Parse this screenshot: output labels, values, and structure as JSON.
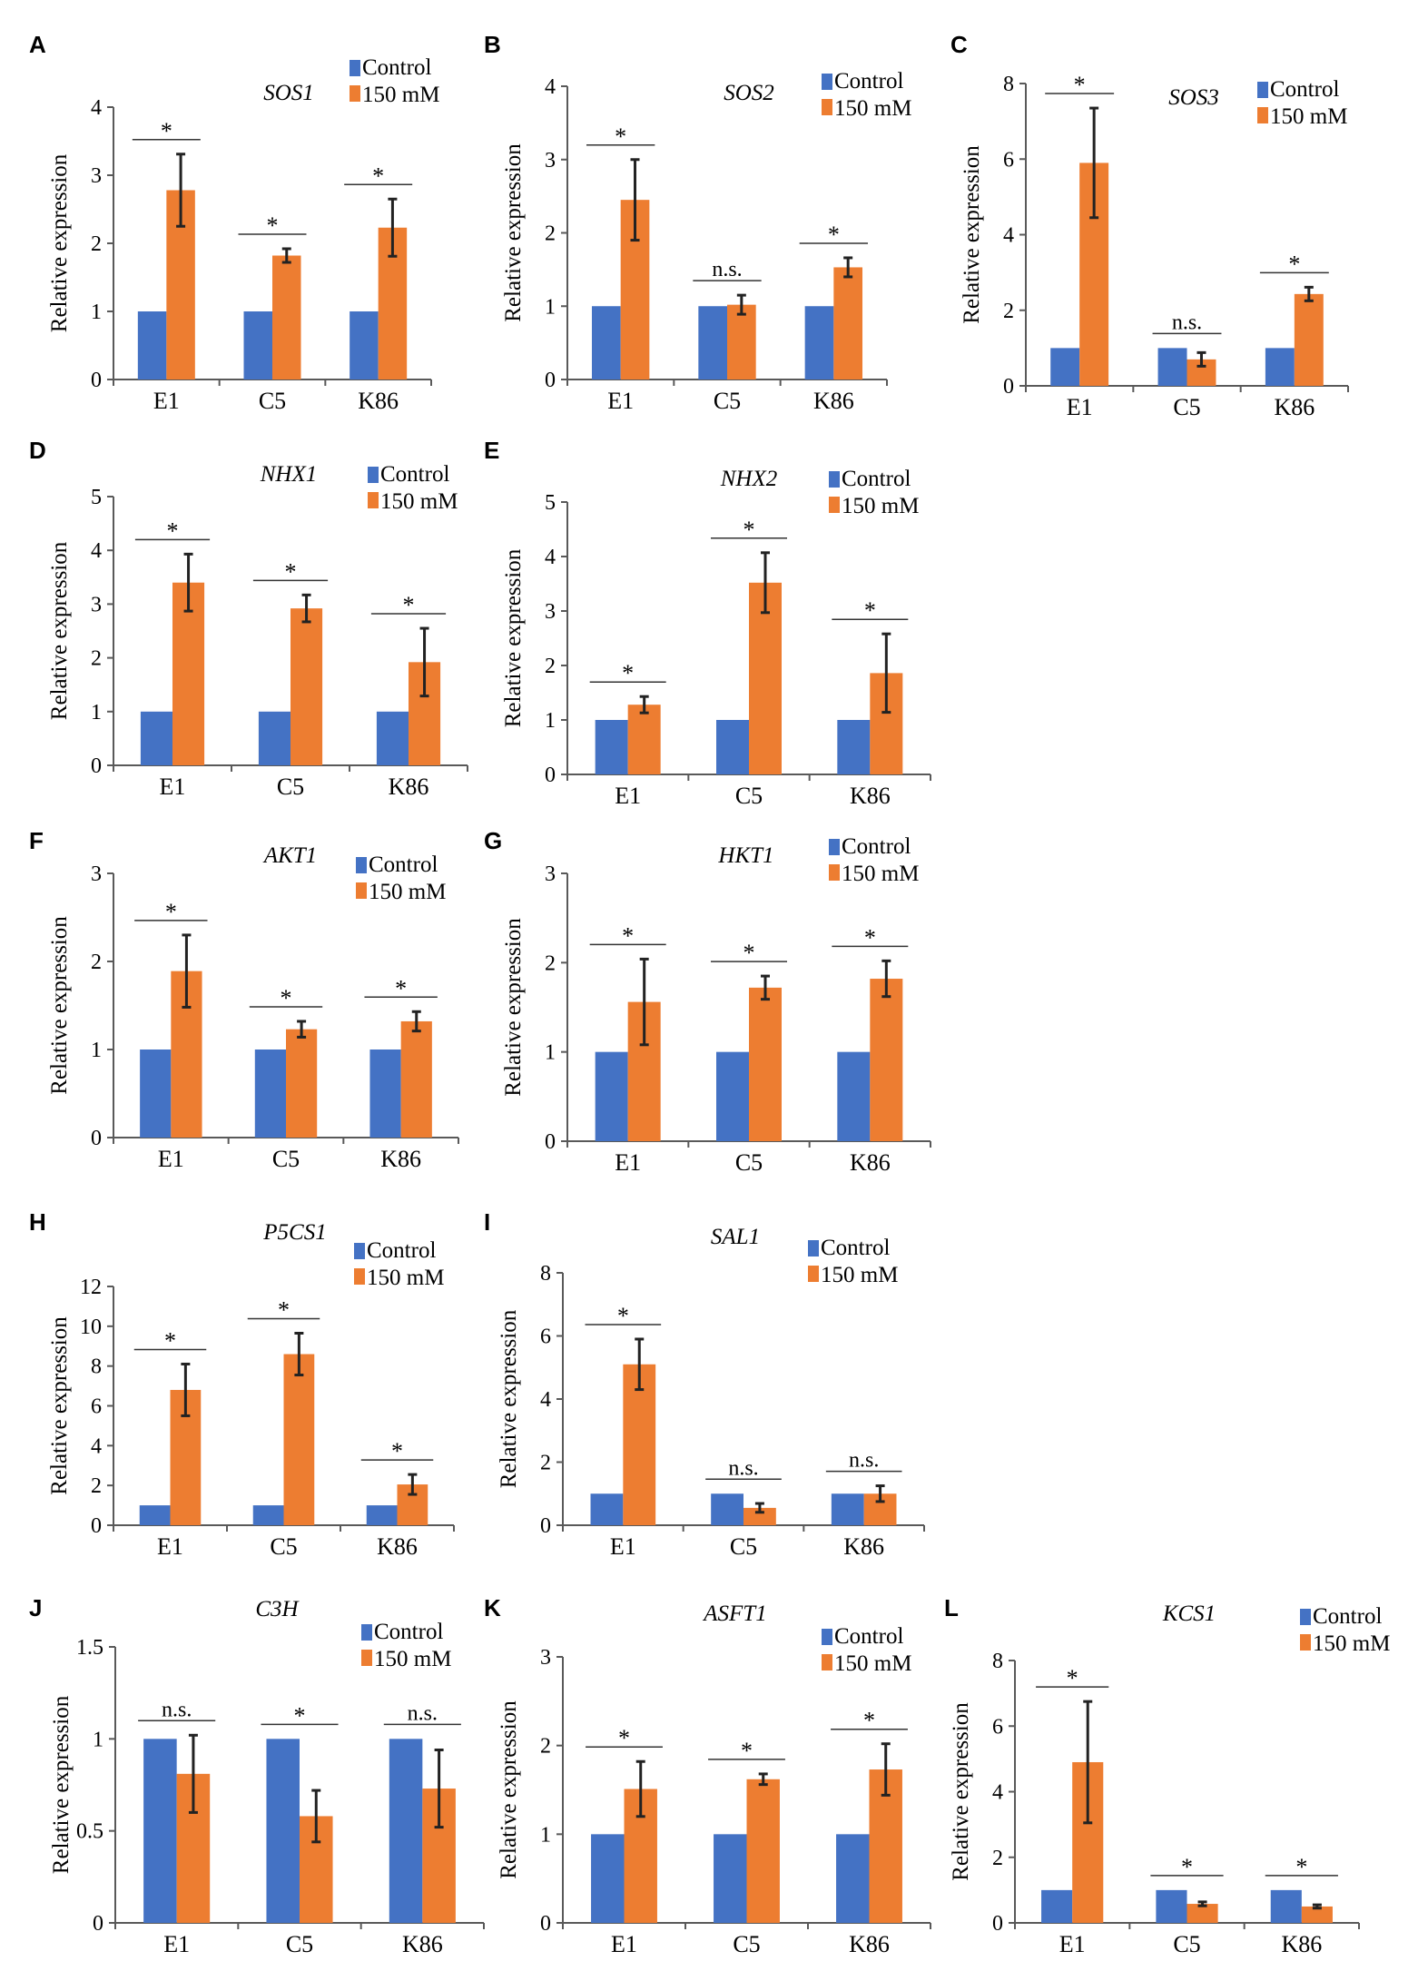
{
  "figure": {
    "legend_control": "Control",
    "legend_treatment": "150 mM",
    "y_axis_label": "Relative expression",
    "colors": {
      "control": "#4472C4",
      "treatment": "#ED7D31",
      "axis": "#595959",
      "text": "#000000"
    }
  },
  "chart_data": [
    {
      "panel": "A",
      "gene": "SOS1",
      "type": "bar",
      "categories": [
        "E1",
        "C5",
        "K86"
      ],
      "ylabel": "Relative expression",
      "ylim": [
        0,
        4
      ],
      "yticks": [
        0,
        1,
        2,
        3,
        4
      ],
      "ytick_labels": [
        "0",
        "1",
        "2",
        "3",
        "4"
      ],
      "series": [
        {
          "name": "Control",
          "values": [
            1,
            1,
            1
          ]
        },
        {
          "name": "150 mM",
          "values": [
            2.78,
            1.82,
            2.23
          ],
          "errors": [
            0.53,
            0.1,
            0.42
          ]
        }
      ],
      "significance": [
        "*",
        "*",
        "*"
      ]
    },
    {
      "panel": "B",
      "gene": "SOS2",
      "type": "bar",
      "categories": [
        "E1",
        "C5",
        "K86"
      ],
      "ylabel": "Relative expression",
      "ylim": [
        0,
        4
      ],
      "yticks": [
        0,
        1,
        2,
        3,
        4
      ],
      "ytick_labels": [
        "0",
        "1",
        "2",
        "3",
        "4"
      ],
      "series": [
        {
          "name": "Control",
          "values": [
            1,
            1,
            1
          ]
        },
        {
          "name": "150 mM",
          "values": [
            2.45,
            1.02,
            1.53
          ],
          "errors": [
            0.55,
            0.13,
            0.13
          ]
        }
      ],
      "significance": [
        "*",
        "n.s.",
        "*"
      ]
    },
    {
      "panel": "C",
      "gene": "SOS3",
      "type": "bar",
      "categories": [
        "E1",
        "C5",
        "K86"
      ],
      "ylabel": "Relative expression",
      "ylim": [
        0,
        8
      ],
      "yticks": [
        0,
        2,
        4,
        6,
        8
      ],
      "ytick_labels": [
        "0",
        "2",
        "4",
        "6",
        "8"
      ],
      "series": [
        {
          "name": "Control",
          "values": [
            1,
            1,
            1
          ]
        },
        {
          "name": "150 mM",
          "values": [
            5.9,
            0.7,
            2.43
          ],
          "errors": [
            1.45,
            0.18,
            0.18
          ]
        }
      ],
      "significance": [
        "*",
        "n.s.",
        "*"
      ]
    },
    {
      "panel": "D",
      "gene": "NHX1",
      "type": "bar",
      "categories": [
        "E1",
        "C5",
        "K86"
      ],
      "ylabel": "Relative expression",
      "ylim": [
        0,
        5
      ],
      "yticks": [
        0,
        1,
        2,
        3,
        4,
        5
      ],
      "ytick_labels": [
        "0",
        "1",
        "2",
        "3",
        "4",
        "5"
      ],
      "series": [
        {
          "name": "Control",
          "values": [
            1,
            1,
            1
          ]
        },
        {
          "name": "150 mM",
          "values": [
            3.4,
            2.92,
            1.92
          ],
          "errors": [
            0.53,
            0.25,
            0.63
          ]
        }
      ],
      "significance": [
        "*",
        "*",
        "*"
      ]
    },
    {
      "panel": "E",
      "gene": "NHX2",
      "type": "bar",
      "categories": [
        "E1",
        "C5",
        "K86"
      ],
      "ylabel": "Relative expression",
      "ylim": [
        0,
        5
      ],
      "yticks": [
        0,
        1,
        2,
        3,
        4,
        5
      ],
      "ytick_labels": [
        "0",
        "1",
        "2",
        "3",
        "4",
        "5"
      ],
      "series": [
        {
          "name": "Control",
          "values": [
            1,
            1,
            1
          ]
        },
        {
          "name": "150 mM",
          "values": [
            1.28,
            3.52,
            1.86
          ],
          "errors": [
            0.15,
            0.55,
            0.72
          ]
        }
      ],
      "significance": [
        "*",
        "*",
        "*"
      ]
    },
    {
      "panel": "F",
      "gene": "AKT1",
      "type": "bar",
      "categories": [
        "E1",
        "C5",
        "K86"
      ],
      "ylabel": "Relative expression",
      "ylim": [
        0,
        3
      ],
      "yticks": [
        0,
        1,
        2,
        3
      ],
      "ytick_labels": [
        "0",
        "1",
        "2",
        "3"
      ],
      "series": [
        {
          "name": "Control",
          "values": [
            1,
            1,
            1
          ]
        },
        {
          "name": "150 mM",
          "values": [
            1.89,
            1.23,
            1.32
          ],
          "errors": [
            0.41,
            0.09,
            0.11
          ]
        }
      ],
      "significance": [
        "*",
        "*",
        "*"
      ]
    },
    {
      "panel": "G",
      "gene": "HKT1",
      "type": "bar",
      "categories": [
        "E1",
        "C5",
        "K86"
      ],
      "ylabel": "Relative expression",
      "ylim": [
        0,
        3
      ],
      "yticks": [
        0,
        1,
        2,
        3
      ],
      "ytick_labels": [
        "0",
        "1",
        "2",
        "3"
      ],
      "series": [
        {
          "name": "Control",
          "values": [
            1,
            1,
            1
          ]
        },
        {
          "name": "150 mM",
          "values": [
            1.56,
            1.72,
            1.82
          ],
          "errors": [
            0.48,
            0.13,
            0.2
          ]
        }
      ],
      "significance": [
        "*",
        "*",
        "*"
      ]
    },
    {
      "panel": "H",
      "gene": "P5CS1",
      "type": "bar",
      "categories": [
        "E1",
        "C5",
        "K86"
      ],
      "ylabel": "Relative expression",
      "ylim": [
        0,
        12
      ],
      "yticks": [
        0,
        2,
        4,
        6,
        8,
        10,
        12
      ],
      "ytick_labels": [
        "0",
        "2",
        "4",
        "6",
        "8",
        "10",
        "12"
      ],
      "series": [
        {
          "name": "Control",
          "values": [
            1,
            1,
            1
          ]
        },
        {
          "name": "150 mM",
          "values": [
            6.8,
            8.6,
            2.05
          ],
          "errors": [
            1.3,
            1.05,
            0.5
          ]
        }
      ],
      "significance": [
        "*",
        "*",
        "*"
      ]
    },
    {
      "panel": "I",
      "gene": "SAL1",
      "type": "bar",
      "categories": [
        "E1",
        "C5",
        "K86"
      ],
      "ylabel": "Relative expression",
      "ylim": [
        0,
        8
      ],
      "yticks": [
        0,
        2,
        4,
        6,
        8
      ],
      "ytick_labels": [
        "0",
        "2",
        "4",
        "6",
        "8"
      ],
      "series": [
        {
          "name": "Control",
          "values": [
            1,
            1,
            1
          ]
        },
        {
          "name": "150 mM",
          "values": [
            5.1,
            0.55,
            1.0
          ],
          "errors": [
            0.8,
            0.14,
            0.25
          ]
        }
      ],
      "significance": [
        "*",
        "n.s.",
        "n.s."
      ]
    },
    {
      "panel": "J",
      "gene": "C3H",
      "type": "bar",
      "categories": [
        "E1",
        "C5",
        "K86"
      ],
      "ylabel": "Relative expression",
      "ylim": [
        0,
        1.5
      ],
      "yticks": [
        0,
        0.5,
        1,
        1.5
      ],
      "ytick_labels": [
        "0",
        "0.5",
        "1",
        "1.5"
      ],
      "series": [
        {
          "name": "Control",
          "values": [
            1,
            1,
            1
          ]
        },
        {
          "name": "150 mM",
          "values": [
            0.81,
            0.58,
            0.73
          ],
          "errors": [
            0.21,
            0.14,
            0.21
          ]
        }
      ],
      "significance": [
        "n.s.",
        "*",
        "n.s."
      ]
    },
    {
      "panel": "K",
      "gene": "ASFT1",
      "type": "bar",
      "categories": [
        "E1",
        "C5",
        "K86"
      ],
      "ylabel": "Relative expression",
      "ylim": [
        0,
        3
      ],
      "yticks": [
        0,
        1,
        2,
        3
      ],
      "ytick_labels": [
        "0",
        "1",
        "2",
        "3"
      ],
      "series": [
        {
          "name": "Control",
          "values": [
            1,
            1,
            1
          ]
        },
        {
          "name": "150 mM",
          "values": [
            1.51,
            1.62,
            1.73
          ],
          "errors": [
            0.31,
            0.06,
            0.29
          ]
        }
      ],
      "significance": [
        "*",
        "*",
        "*"
      ]
    },
    {
      "panel": "L",
      "gene": "KCS1",
      "type": "bar",
      "categories": [
        "E1",
        "C5",
        "K86"
      ],
      "ylabel": "Relative expression",
      "ylim": [
        0,
        8
      ],
      "yticks": [
        0,
        2,
        4,
        6,
        8
      ],
      "ytick_labels": [
        "0",
        "2",
        "4",
        "6",
        "8"
      ],
      "series": [
        {
          "name": "Control",
          "values": [
            1,
            1,
            1
          ]
        },
        {
          "name": "150 mM",
          "values": [
            4.9,
            0.58,
            0.5
          ],
          "errors": [
            1.85,
            0.06,
            0.05
          ]
        }
      ],
      "significance": [
        "*",
        "*",
        "*"
      ]
    }
  ]
}
